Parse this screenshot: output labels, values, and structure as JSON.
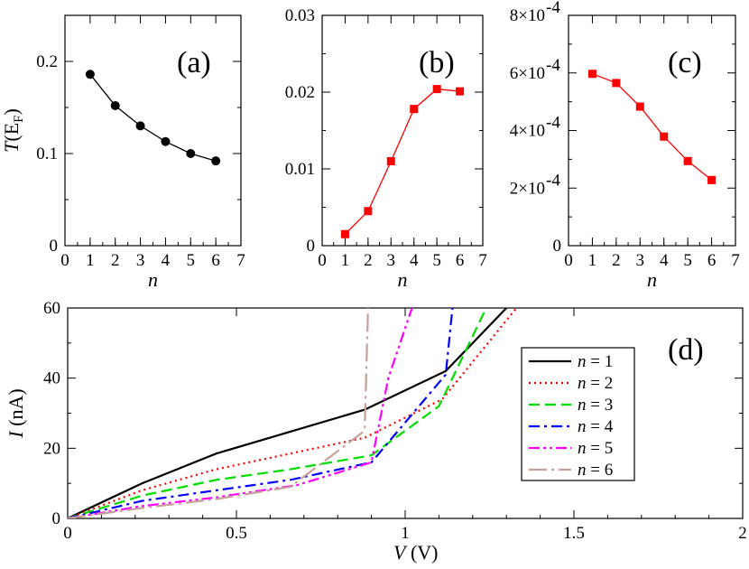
{
  "chart_data": [
    {
      "id": "a",
      "type": "line",
      "panel_label": "(a)",
      "xlabel": "n",
      "ylabel": "T(E_F)",
      "ylabel_main": "T(E",
      "ylabel_sub": "F",
      "ylabel_close": ")",
      "xlim": [
        0,
        7
      ],
      "ylim": [
        0,
        0.25
      ],
      "xticks": [
        0,
        1,
        2,
        3,
        4,
        5,
        6,
        7
      ],
      "xtick_labels": [
        "0",
        "1",
        "2",
        "3",
        "4",
        "5",
        "6",
        "7"
      ],
      "yticks": [
        0,
        0.1,
        0.2
      ],
      "ytick_labels": [
        "0",
        "0.1",
        "0.2"
      ],
      "color": "#000000",
      "marker": "circle",
      "x": [
        1,
        2,
        3,
        4,
        5,
        6
      ],
      "y": [
        0.186,
        0.152,
        0.13,
        0.113,
        0.1,
        0.092
      ]
    },
    {
      "id": "b",
      "type": "line",
      "panel_label": "(b)",
      "xlabel": "n",
      "xlim": [
        0,
        7
      ],
      "ylim": [
        0,
        0.03
      ],
      "xticks": [
        0,
        1,
        2,
        3,
        4,
        5,
        6,
        7
      ],
      "xtick_labels": [
        "0",
        "1",
        "2",
        "3",
        "4",
        "5",
        "6",
        "7"
      ],
      "yticks": [
        0,
        0.01,
        0.02,
        0.03
      ],
      "ytick_labels": [
        "0",
        "0.01",
        "0.02",
        "0.03"
      ],
      "color": "#ff0000",
      "marker": "square",
      "x": [
        1,
        2,
        3,
        4,
        5,
        6
      ],
      "y": [
        0.0015,
        0.0045,
        0.011,
        0.0178,
        0.0204,
        0.0201
      ]
    },
    {
      "id": "c",
      "type": "line",
      "panel_label": "(c)",
      "xlabel": "n",
      "xlim": [
        0,
        7
      ],
      "ylim": [
        0,
        0.0008
      ],
      "xticks": [
        0,
        1,
        2,
        3,
        4,
        5,
        6,
        7
      ],
      "xtick_labels": [
        "0",
        "1",
        "2",
        "3",
        "4",
        "5",
        "6",
        "7"
      ],
      "yticks": [
        0,
        0.0002,
        0.0004,
        0.0006,
        0.0008
      ],
      "ytick_labels": [
        "0",
        "2×10",
        "4×10",
        "6×10",
        "8×10"
      ],
      "ytick_exponents": [
        "",
        "-4",
        "-4",
        "-4",
        "-4"
      ],
      "color": "#ff0000",
      "marker": "square",
      "x": [
        1,
        2,
        3,
        4,
        5,
        6
      ],
      "y": [
        0.000597,
        0.000565,
        0.000483,
        0.000379,
        0.000294,
        0.000228
      ]
    },
    {
      "id": "d",
      "type": "line",
      "panel_label": "(d)",
      "xlabel": "V (V)",
      "xlabel_var": "V",
      "xlabel_unit": " (V)",
      "ylabel": "I (nA)",
      "ylabel_var": "I",
      "ylabel_unit": " (nA)",
      "xlim": [
        0,
        2
      ],
      "ylim": [
        0,
        60
      ],
      "xticks": [
        0,
        0.5,
        1,
        1.5,
        2
      ],
      "xtick_labels": [
        "0",
        "0.5",
        "1",
        "1.5",
        "2"
      ],
      "yticks": [
        0,
        20,
        40,
        60
      ],
      "ytick_labels": [
        "0",
        "20",
        "40",
        "60"
      ],
      "legend_position": "right",
      "series": [
        {
          "name": "n = 1",
          "legend_var": "n",
          "legend_rest": " = 1",
          "color": "#000000",
          "dash": "",
          "x": [
            0,
            0.22,
            0.44,
            0.88,
            1.12,
            1.3
          ],
          "y": [
            0,
            10,
            18.5,
            31,
            42,
            60
          ]
        },
        {
          "name": "n = 2",
          "legend_var": "n",
          "legend_rest": " = 2",
          "color": "#ff0000",
          "dash": "2,4",
          "x": [
            0,
            0.22,
            0.44,
            0.88,
            1.11,
            1.33
          ],
          "y": [
            0,
            8,
            14,
            23,
            34,
            60
          ]
        },
        {
          "name": "n = 3",
          "legend_var": "n",
          "legend_rest": " = 3",
          "color": "#00dd00",
          "dash": "12,6",
          "x": [
            0,
            0.22,
            0.44,
            0.66,
            0.9,
            1.1,
            1.24
          ],
          "y": [
            0,
            6.5,
            11,
            14,
            18,
            32,
            60
          ]
        },
        {
          "name": "n = 4",
          "legend_var": "n",
          "legend_rest": " = 4",
          "color": "#0000ff",
          "dash": "12,5,3,5",
          "x": [
            0,
            0.22,
            0.44,
            0.66,
            0.9,
            1.12,
            1.14
          ],
          "y": [
            0,
            5,
            8,
            11,
            16,
            41,
            60
          ]
        },
        {
          "name": "n = 5",
          "legend_var": "n",
          "legend_rest": " = 5",
          "color": "#ff00ff",
          "dash": "12,4,3,4,3,4",
          "x": [
            0,
            0.22,
            0.44,
            0.68,
            0.9,
            0.95,
            1.02
          ],
          "y": [
            0,
            3.5,
            6,
            9.5,
            16,
            40,
            60
          ]
        },
        {
          "name": "n = 6",
          "legend_var": "n",
          "legend_rest": " = 6",
          "color": "#c8a09a",
          "dash": "20,5,3,5",
          "x": [
            0,
            0.22,
            0.44,
            0.66,
            0.88,
            0.89
          ],
          "y": [
            0,
            3,
            5.5,
            9,
            25,
            60
          ]
        }
      ]
    }
  ]
}
